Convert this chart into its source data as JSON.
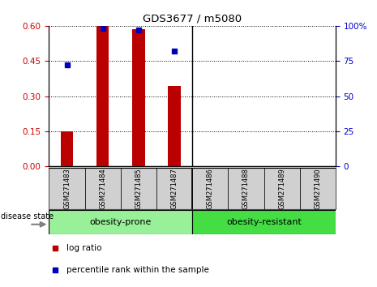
{
  "title": "GDS3677 / m5080",
  "samples": [
    "GSM271483",
    "GSM271484",
    "GSM271485",
    "GSM271487",
    "GSM271486",
    "GSM271488",
    "GSM271489",
    "GSM271490"
  ],
  "log_ratio": [
    0.15,
    0.6,
    0.585,
    0.345,
    0.0,
    0.0,
    0.0,
    0.0
  ],
  "percentile_rank": [
    72,
    98,
    97,
    82,
    null,
    null,
    null,
    null
  ],
  "group_split": 4,
  "group_labels": [
    "obesity-prone",
    "obesity-resistant"
  ],
  "group_colors": [
    "#98F098",
    "#44DD44"
  ],
  "ylim_left": [
    0,
    0.6
  ],
  "ylim_right": [
    0,
    100
  ],
  "yticks_left": [
    0,
    0.15,
    0.3,
    0.45,
    0.6
  ],
  "yticks_right": [
    0,
    25,
    50,
    75,
    100
  ],
  "bar_color": "#BB0000",
  "dot_color": "#0000BB",
  "tick_color_left": "#CC0000",
  "tick_color_right": "#0000CC",
  "legend_log_ratio": "log ratio",
  "legend_percentile": "percentile rank within the sample",
  "disease_state_label": "disease state",
  "bar_width": 0.35,
  "ticklabel_gray": "#C8C8C8",
  "box_gray": "#D0D0D0"
}
